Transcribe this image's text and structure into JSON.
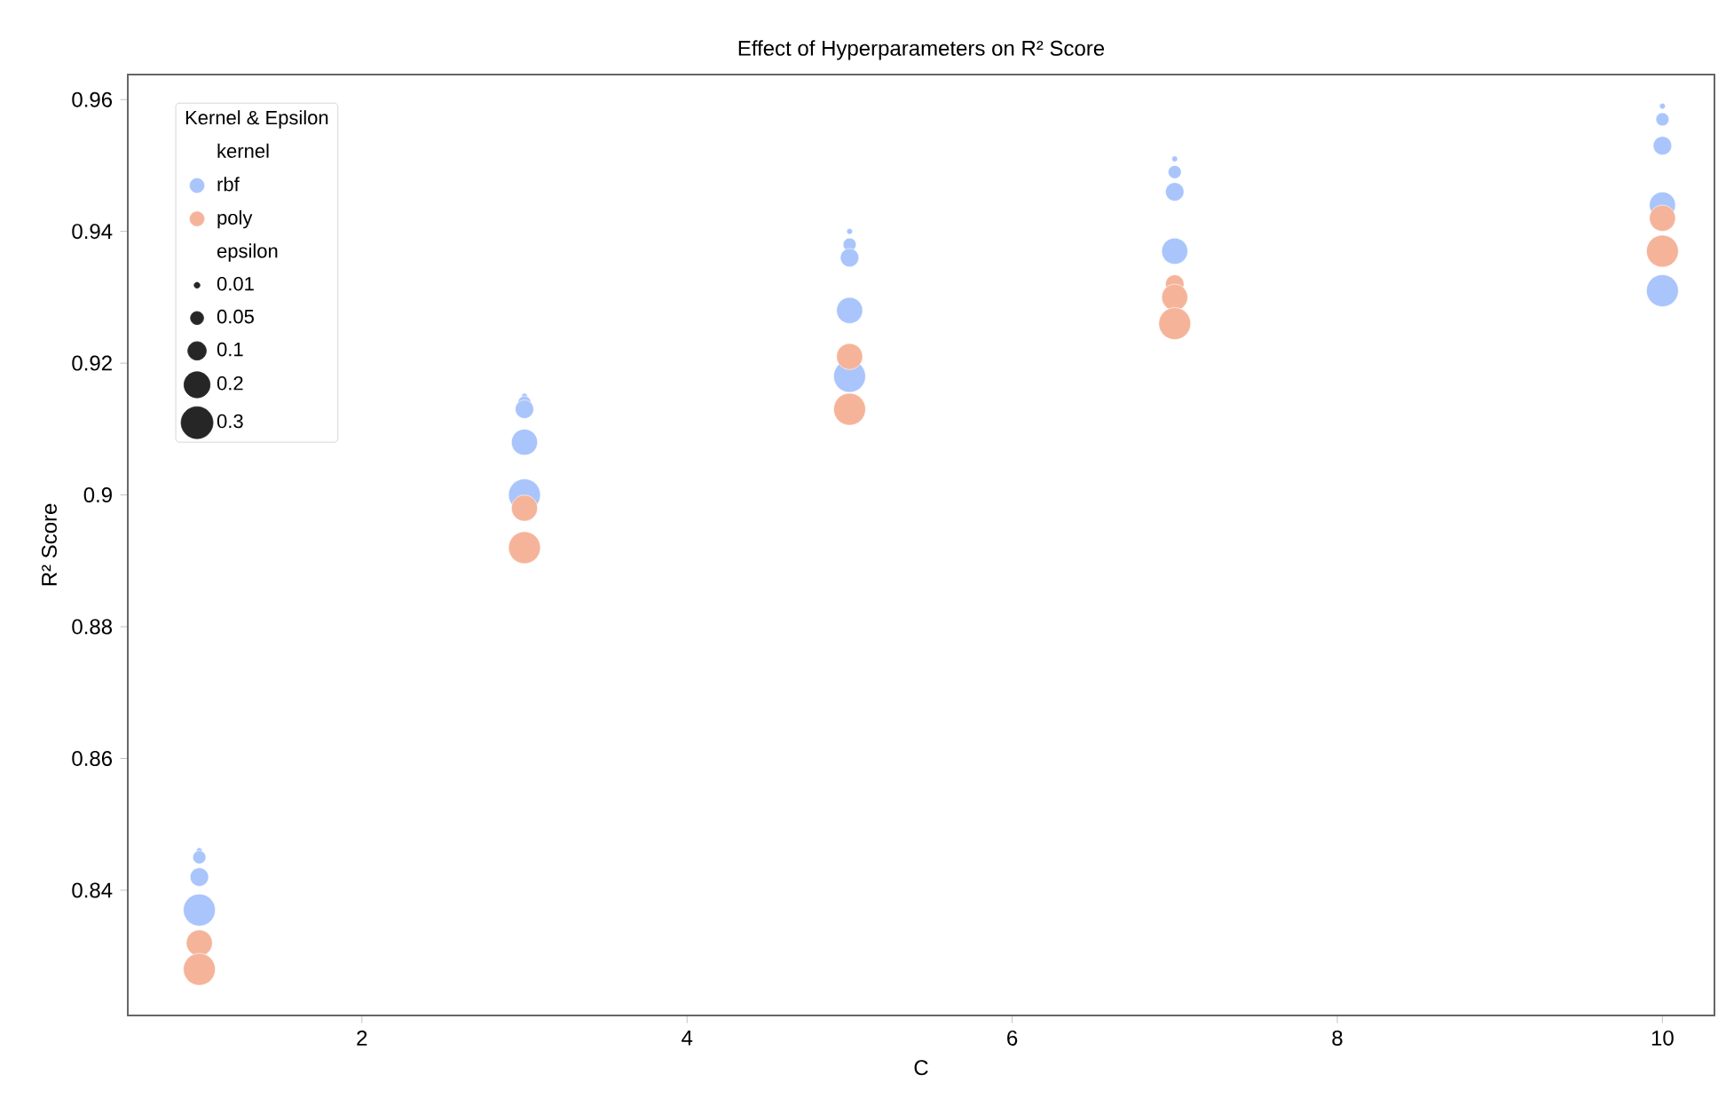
{
  "chart_data": {
    "type": "bubble",
    "title": "Effect of Hyperparameters on R² Score",
    "xlabel": "C",
    "ylabel": "R² Score",
    "legend_title": "Kernel & Epsilon",
    "annotations": [
      "kernel",
      "epsilon"
    ],
    "xlim": [
      0.56,
      10.32
    ],
    "ylim": [
      0.821,
      0.9638
    ],
    "xticks": [
      2,
      4,
      6,
      8,
      10
    ],
    "yticks": [
      0.84,
      0.86,
      0.88,
      0.9,
      0.92,
      0.94,
      0.96
    ],
    "size_legend": [
      0.01,
      0.05,
      0.1,
      0.2,
      0.3
    ],
    "marker": "circle",
    "legend": "top left",
    "series": [
      {
        "name": "rbf",
        "color": "#a9c5fb",
        "x": [
          1,
          1,
          1,
          1,
          3,
          3,
          3,
          3,
          3,
          5,
          5,
          5,
          5,
          5,
          7,
          7,
          7,
          7,
          10,
          10,
          10,
          10,
          10
        ],
        "sizes": [
          0.01,
          0.05,
          0.1,
          0.3,
          0.01,
          0.05,
          0.1,
          0.2,
          0.3,
          0.01,
          0.05,
          0.1,
          0.2,
          0.3,
          0.01,
          0.05,
          0.1,
          0.2,
          0.01,
          0.05,
          0.1,
          0.2,
          0.3
        ],
        "values": [
          0.846,
          0.845,
          0.842,
          0.837,
          0.915,
          0.914,
          0.913,
          0.908,
          0.9,
          0.94,
          0.938,
          0.936,
          0.928,
          0.918,
          0.951,
          0.949,
          0.946,
          0.937,
          0.959,
          0.957,
          0.953,
          0.944,
          0.931
        ]
      },
      {
        "name": "poly",
        "color": "#f5b49a",
        "x": [
          1,
          1,
          3,
          3,
          5,
          5,
          7,
          7,
          7,
          10,
          10
        ],
        "sizes": [
          0.2,
          0.3,
          0.2,
          0.3,
          0.2,
          0.3,
          0.1,
          0.2,
          0.3,
          0.2,
          0.3
        ],
        "values": [
          0.832,
          0.828,
          0.898,
          0.892,
          0.921,
          0.913,
          0.932,
          0.93,
          0.926,
          0.942,
          0.937
        ]
      }
    ]
  }
}
